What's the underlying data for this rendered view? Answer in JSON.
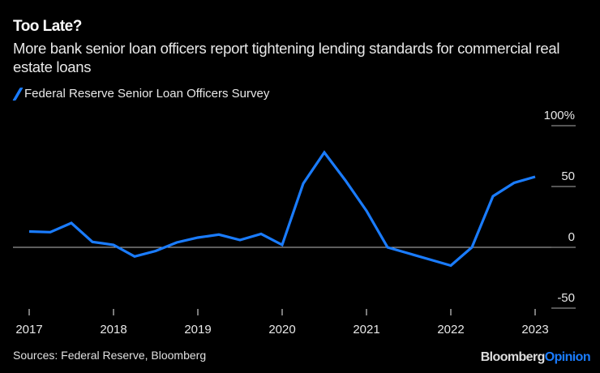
{
  "chart_data": {
    "type": "line",
    "title": "Too Late?",
    "subtitle": "More bank senior loan officers report tightening lending standards for commercial real estate loans",
    "series": [
      {
        "name": "Federal Reserve Senior Loan Officers Survey",
        "color": "#1a7cff",
        "x": [
          "2017-01",
          "2017-04",
          "2017-07",
          "2017-10",
          "2018-01",
          "2018-04",
          "2018-07",
          "2018-10",
          "2019-01",
          "2019-04",
          "2019-07",
          "2019-10",
          "2020-01",
          "2020-04",
          "2020-07",
          "2020-10",
          "2021-01",
          "2021-04",
          "2021-07",
          "2021-10",
          "2022-01",
          "2022-04",
          "2022-07",
          "2022-10",
          "2023-01"
        ],
        "values": [
          13,
          12.5,
          20,
          4.5,
          2,
          -7.5,
          -3,
          4,
          8,
          10.5,
          6,
          11,
          2,
          52.5,
          78,
          55,
          30,
          0,
          -5,
          -10,
          -15,
          0,
          42,
          53,
          58
        ]
      }
    ],
    "x_ticks": [
      "2017",
      "2018",
      "2019",
      "2020",
      "2021",
      "2022",
      "2023"
    ],
    "y_ticks": [
      {
        "value": 100,
        "label": "100%"
      },
      {
        "value": 50,
        "label": "50"
      },
      {
        "value": 0,
        "label": "0"
      },
      {
        "value": -50,
        "label": "-50"
      }
    ],
    "ylim": [
      -50,
      100
    ],
    "y_axis_position": "right",
    "legend_position": "top-left",
    "grid": false,
    "zero_line": true
  },
  "footer": {
    "source": "Sources: Federal Reserve, Bloomberg",
    "logo_part1": "Bloomberg",
    "logo_part2": "Opinion"
  }
}
